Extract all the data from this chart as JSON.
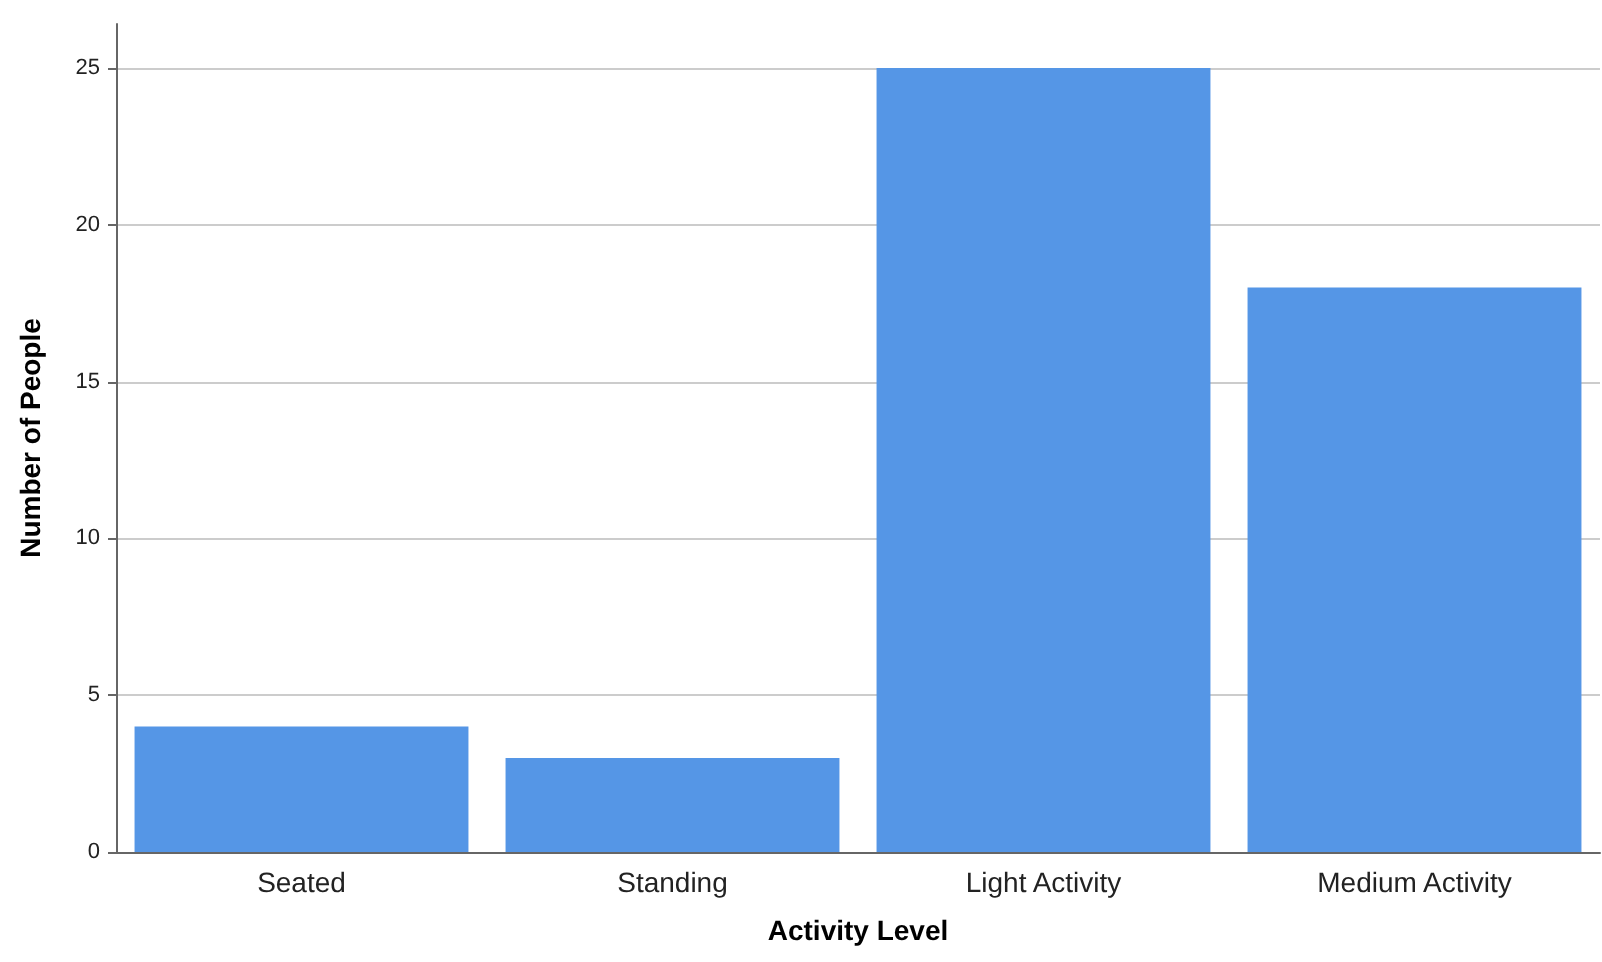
{
  "chart_data": {
    "type": "bar",
    "xlabel": "Activity Level",
    "ylabel": "Number of People",
    "categories": [
      "Seated",
      "Standing",
      "Light Activity",
      "Medium Activity"
    ],
    "values": [
      4,
      3,
      25,
      18
    ],
    "color": "#5596e6",
    "ylim": [
      0,
      26.4
    ],
    "yticks": [
      0,
      5,
      10,
      15,
      20,
      25
    ],
    "grid": "y"
  }
}
